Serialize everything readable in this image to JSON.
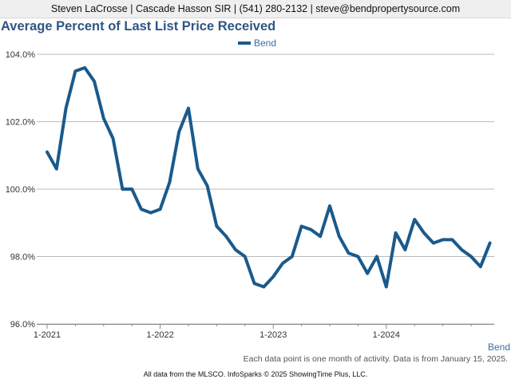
{
  "header": {
    "contact": "Steven LaCrosse | Cascade Hasson SIR | (541) 280-2132 | steve@bendpropertysource.com"
  },
  "footer": {
    "note": "Each data point is one month of activity. Data is from January 15, 2025.",
    "credit": "All data from the MLSCO. InfoSparks © 2025 ShowingTime Plus, LLC.",
    "corner_label": "Bend"
  },
  "colors": {
    "series": "#1a5a8c",
    "title": "#2e5584",
    "grid": "#bbbbbb"
  },
  "chart_data": {
    "type": "line",
    "title": "Average Percent of Last List Price Received",
    "xlabel": "",
    "ylabel": "",
    "ylim": [
      96.0,
      104.0
    ],
    "yticks": [
      96.0,
      98.0,
      100.0,
      102.0,
      104.0
    ],
    "ytick_labels": [
      "96.0%",
      "98.0%",
      "100.0%",
      "102.0%",
      "104.0%"
    ],
    "x_start": "2021-01",
    "xtick_labels": [
      "1-2021",
      "1-2022",
      "1-2023",
      "1-2024"
    ],
    "legend": {
      "position": "top-center"
    },
    "grid": true,
    "series": [
      {
        "name": "Bend",
        "values": [
          101.1,
          100.6,
          102.4,
          103.5,
          103.6,
          103.2,
          102.1,
          101.5,
          100.0,
          100.0,
          99.4,
          99.3,
          99.4,
          100.2,
          101.7,
          102.4,
          100.6,
          100.1,
          98.9,
          98.6,
          98.2,
          98.0,
          97.2,
          97.1,
          97.4,
          97.8,
          98.0,
          98.9,
          98.8,
          98.6,
          99.5,
          98.6,
          98.1,
          98.0,
          97.5,
          98.0,
          97.1,
          98.7,
          98.2,
          99.1,
          98.7,
          98.4,
          98.5,
          98.5,
          98.2,
          98.0,
          97.7,
          98.4
        ]
      }
    ]
  }
}
